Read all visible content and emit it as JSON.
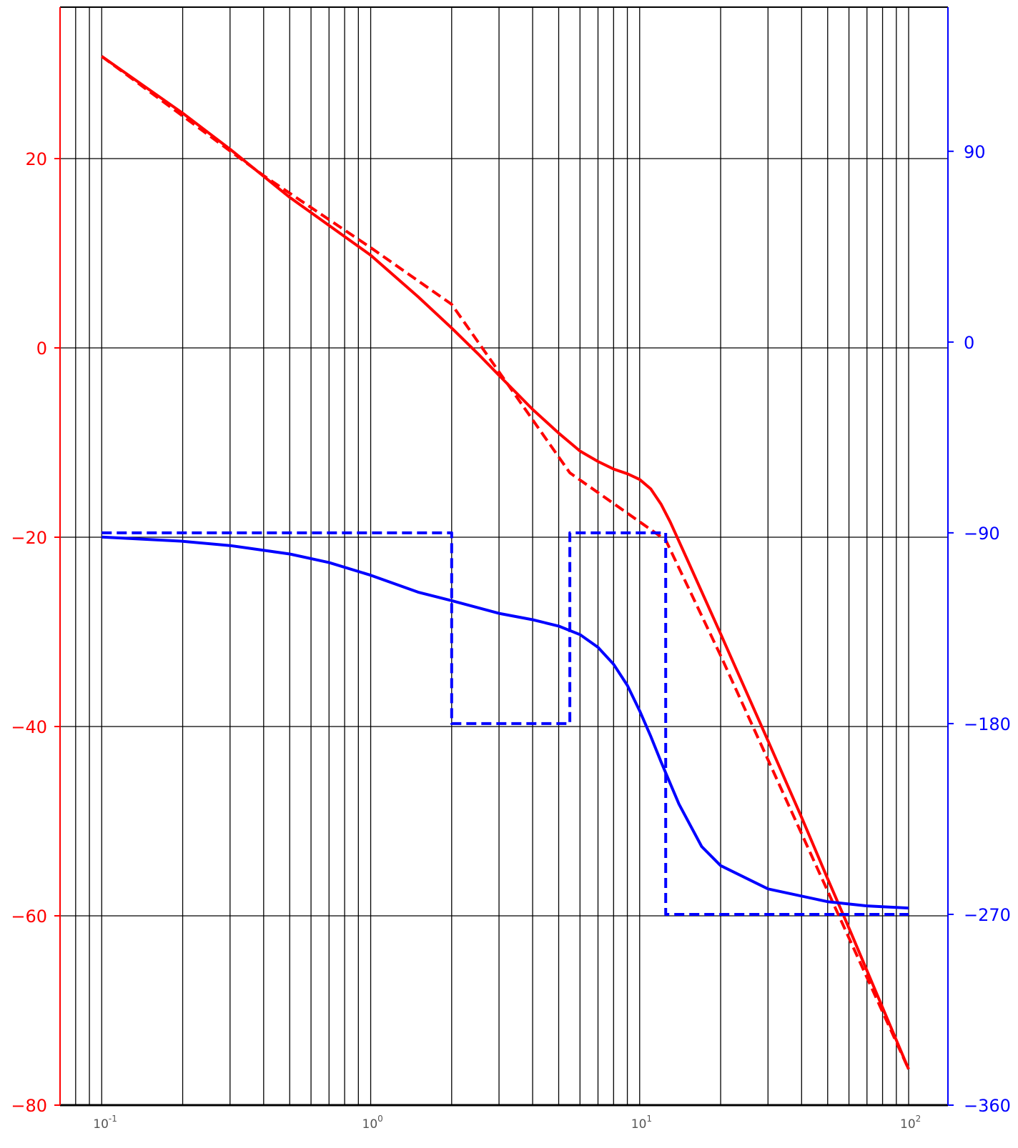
{
  "chart_data": {
    "type": "line",
    "title": "",
    "xlabel": "",
    "x_scale": "log",
    "xlim": [
      0.07,
      140
    ],
    "x_ticks": [
      {
        "value": 0.1,
        "base": "10",
        "exp": "-1"
      },
      {
        "value": 1,
        "base": "10",
        "exp": "0"
      },
      {
        "value": 10,
        "base": "10",
        "exp": "1"
      },
      {
        "value": 100,
        "base": "10",
        "exp": "2"
      }
    ],
    "grid": true,
    "left_axis": {
      "color": "#ff0000",
      "ylim": [
        -80,
        36
      ],
      "ticks": [
        20,
        0,
        -20,
        -40,
        -60,
        -80
      ],
      "tick_labels": [
        "20",
        "0",
        "−20",
        "−40",
        "−60",
        "−80"
      ]
    },
    "right_axis": {
      "color": "#0000ff",
      "ylim": [
        -360,
        158
      ],
      "ticks": [
        90,
        0,
        -90,
        -180,
        -270,
        -360
      ],
      "tick_labels": [
        "90",
        "0",
        "−90",
        "−180",
        "−270",
        "−360"
      ]
    },
    "series": [
      {
        "axis": "left",
        "color": "#ff0000",
        "style": "solid",
        "x": [
          0.1,
          0.2,
          0.3,
          0.5,
          1,
          1.5,
          2,
          2.5,
          3,
          4,
          5,
          6,
          7,
          8,
          9,
          10,
          11,
          12,
          13,
          15,
          20,
          30,
          40,
          50,
          60,
          80,
          100
        ],
        "y": [
          30.8,
          24.8,
          21.0,
          15.9,
          9.8,
          5.4,
          2.1,
          -0.6,
          -2.9,
          -6.5,
          -9.0,
          -10.9,
          -12.0,
          -12.8,
          -13.3,
          -13.9,
          -14.9,
          -16.5,
          -18.4,
          -22.3,
          -30.2,
          -41.5,
          -49.6,
          -56.1,
          -61.3,
          -69.7,
          -76.2
        ]
      },
      {
        "axis": "left",
        "color": "#ff0000",
        "style": "dashed",
        "x": [
          0.1,
          0.4,
          1,
          2,
          5.5,
          12.5,
          20,
          100
        ],
        "y": [
          30.8,
          18.2,
          10.6,
          4.6,
          -13.2,
          -20.3,
          -32.5,
          -76.2
        ]
      },
      {
        "axis": "right",
        "color": "#0000ff",
        "style": "solid",
        "x": [
          0.1,
          0.2,
          0.3,
          0.5,
          0.7,
          1,
          1.5,
          2,
          3,
          4,
          5,
          6,
          7,
          8,
          9,
          10,
          11,
          12,
          14,
          17,
          20,
          30,
          50,
          70,
          100
        ],
        "y": [
          -92,
          -94,
          -96,
          -100,
          -104,
          -110,
          -118,
          -122,
          -128,
          -131,
          -134,
          -138,
          -144,
          -152,
          -162,
          -174,
          -186,
          -198,
          -218,
          -238,
          -247,
          -258,
          -264,
          -266,
          -267
        ]
      },
      {
        "axis": "right",
        "color": "#0000ff",
        "style": "dashed",
        "x": [
          0.1,
          2,
          2,
          5.5,
          5.5,
          12.5,
          12.5,
          100
        ],
        "y": [
          -90,
          -90,
          -180,
          -180,
          -90,
          -90,
          -270,
          -270
        ]
      }
    ]
  }
}
